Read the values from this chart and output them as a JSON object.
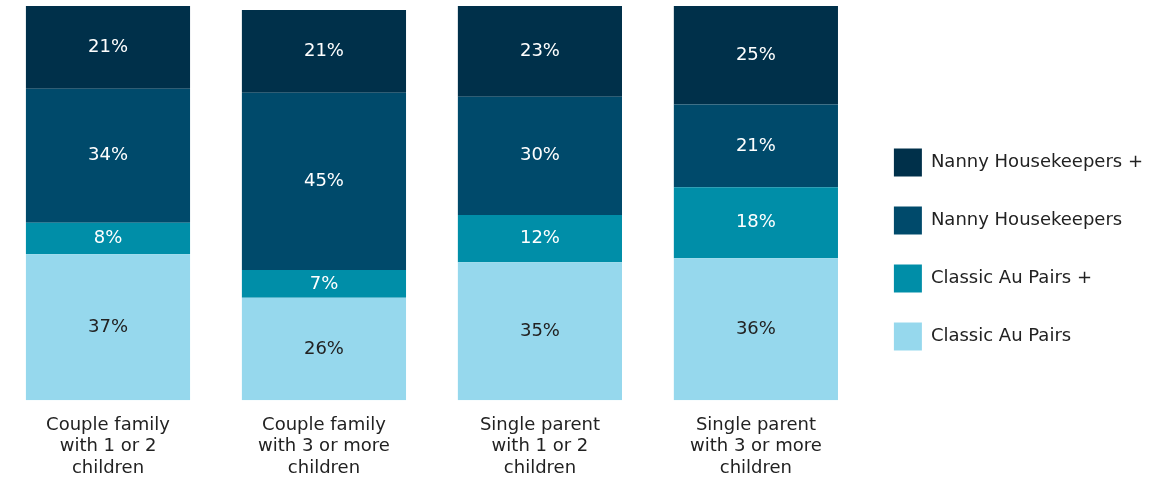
{
  "chart_data": {
    "type": "bar",
    "stacked": true,
    "categories": [
      "Couple family with 1 or 2 children",
      "Couple family with 3 or more children",
      "Single parent with 1 or 2 children",
      "Single parent with 3 or more children"
    ],
    "series": [
      {
        "name": "Classic Au Pairs",
        "color": "#96d8ed",
        "values": [
          37,
          26,
          35,
          36
        ],
        "value_labels": [
          "37%",
          "26%",
          "35%",
          "36%"
        ]
      },
      {
        "name": "Classic Au Pairs +",
        "color": "#008ea8",
        "values": [
          8,
          7,
          12,
          18
        ],
        "value_labels": [
          "8%",
          "7%",
          "12%",
          "18%"
        ]
      },
      {
        "name": "Nanny Housekeepers",
        "color": "#004a6b",
        "values": [
          34,
          45,
          30,
          21
        ],
        "value_labels": [
          "34%",
          "45%",
          "30%",
          "21%"
        ]
      },
      {
        "name": "Nanny Housekeepers +",
        "color": "#00304a",
        "values": [
          21,
          21,
          23,
          25
        ],
        "value_labels": [
          "21%",
          "21%",
          "23%",
          "25%"
        ]
      }
    ],
    "legend": "right",
    "grid": false
  }
}
